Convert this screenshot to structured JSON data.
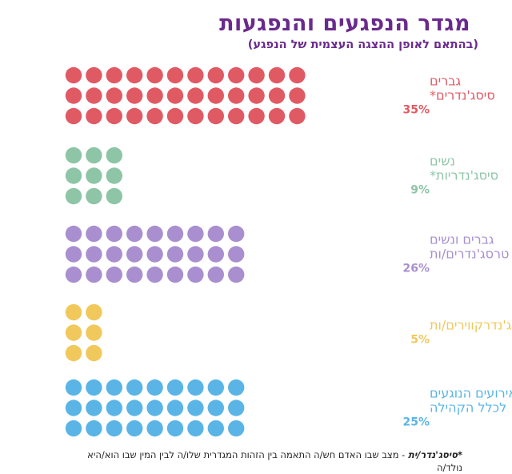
{
  "header": {
    "title": "מגדר הנפגעים והנפגעות",
    "subtitle": "(בהתאם לאופן ההצגה העצמית של הנפגע)"
  },
  "footnote": {
    "term": "*סיסג'נדר/ית",
    "text": " - מצב שבו האדם חש/ה התאמה בין הזהות המגדרית שלו/ה לבין המין שבו הוא/היא נולד/ה"
  },
  "chart_data": {
    "type": "bar",
    "style": "dot-grid",
    "title": "מגדר הנפגעים והנפגעות",
    "subtitle": "(בהתאם לאופן ההצגה העצמית של הנפגע)",
    "categories": [
      "גברים סיסג'נדרים*",
      "נשים סיסג'נדריות*",
      "גברים ונשים טרסג'נדרים/ות",
      "ג'נדרקווירים/ות",
      "אירועים הנוגעים לכלל הקהילה"
    ],
    "values": [
      35,
      9,
      26,
      5,
      25
    ],
    "unit": "%",
    "dots": [
      36,
      9,
      27,
      6,
      27
    ],
    "series": [
      {
        "label_lines": [
          "גברים",
          "סיסג'נדרים*"
        ],
        "value_label": "35%",
        "value": 35,
        "dots": 36,
        "color": "#e05a64"
      },
      {
        "label_lines": [
          "נשים",
          "סיסג'נדריות*"
        ],
        "value_label": "9%",
        "value": 9,
        "dots": 9,
        "color": "#8dc5a6"
      },
      {
        "label_lines": [
          "גברים ונשים",
          "טרסג'נדרים/ות"
        ],
        "value_label": "26%",
        "value": 26,
        "dots": 27,
        "color": "#a98fcf"
      },
      {
        "label_lines": [
          "ג'נדרקווירים/ות"
        ],
        "value_label": "5%",
        "value": 5,
        "dots": 6,
        "color": "#f0c85c"
      },
      {
        "label_lines": [
          "אירועים הנוגעים",
          "לכלל הקהילה"
        ],
        "value_label": "25%",
        "value": 25,
        "dots": 27,
        "color": "#5ab5e6"
      }
    ]
  }
}
